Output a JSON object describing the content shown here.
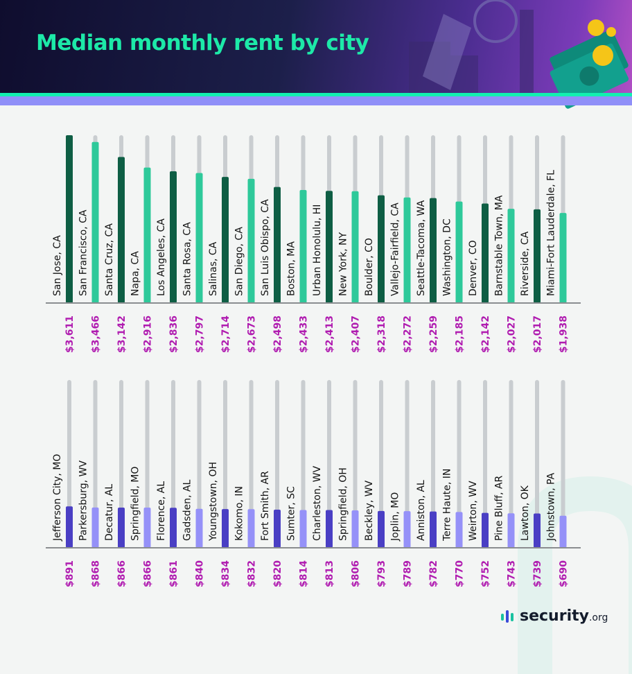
{
  "header": {
    "title": "Median monthly rent by city"
  },
  "colors": {
    "top_dark": "#0e5e44",
    "top_light": "#2ec99a",
    "bottom_dark": "#4a3fc4",
    "bottom_light": "#9591f8",
    "track": "#c9cdd0",
    "value_text": "#b01cb0",
    "accent_green": "#12f0b0",
    "accent_purple": "#8f8ff8"
  },
  "chart_data": [
    {
      "type": "bar",
      "title": "Median monthly rent by city",
      "ylim": [
        0,
        3611
      ],
      "categories": [
        "San Jose, CA",
        "San Francisco, CA",
        "Santa Cruz, CA",
        "Napa, CA",
        "Los Angeles, CA",
        "Santa Rosa, CA",
        "Salinas, CA",
        "San Diego, CA",
        "San Luis Obispo, CA",
        "Boston, MA",
        "Urban Honolulu, HI",
        "New York, NY",
        "Boulder, CO",
        "Vallejo-Fairfield, CA",
        "Seattle-Tacoma, WA",
        "Washington, DC",
        "Denver, CO",
        "Barnstable Town, MA",
        "Riverside, CA",
        "Miami-Fort Lauderdale, FL"
      ],
      "values": [
        3611,
        3466,
        3142,
        2916,
        2836,
        2797,
        2714,
        2673,
        2498,
        2433,
        2413,
        2407,
        2318,
        2272,
        2259,
        2185,
        2142,
        2027,
        2017,
        1938
      ],
      "labels": [
        "$3,611",
        "$3,466",
        "$3,142",
        "$2,916",
        "$2,836",
        "$2,797",
        "$2,714",
        "$2,673",
        "$2,498",
        "$2,433",
        "$2,413",
        "$2,407",
        "$2,318",
        "$2,272",
        "$2,259",
        "$2,185",
        "$2,142",
        "$2,027",
        "$2,017",
        "$1,938"
      ]
    },
    {
      "type": "bar",
      "ylim": [
        0,
        3611
      ],
      "categories": [
        "Jefferson City, MO",
        "Parkersburg, WV",
        "Decatur, AL",
        "Springfield, MO",
        "Florence, AL",
        "Gadsden, AL",
        "Youngstown, OH",
        "Kokomo, IN",
        "Fort Smith, AR",
        "Sumter, SC",
        "Charleston, WV",
        "Springfield, OH",
        "Beckley, WV",
        "Joplin, MO",
        "Anniston, AL",
        "Terre Haute, IN",
        "Weirton, WV",
        "Pine Bluff, AR",
        "Lawton, OK",
        "Johnstown, PA"
      ],
      "values": [
        891,
        868,
        866,
        866,
        861,
        840,
        834,
        832,
        820,
        814,
        813,
        806,
        793,
        789,
        782,
        770,
        752,
        743,
        739,
        690
      ],
      "labels": [
        "$891",
        "$868",
        "$866",
        "$866",
        "$861",
        "$840",
        "$834",
        "$832",
        "$820",
        "$814",
        "$813",
        "$806",
        "$793",
        "$789",
        "$782",
        "$770",
        "$752",
        "$743",
        "$739",
        "$690"
      ]
    }
  ],
  "logo": {
    "name": "security",
    "suffix": ".org"
  }
}
